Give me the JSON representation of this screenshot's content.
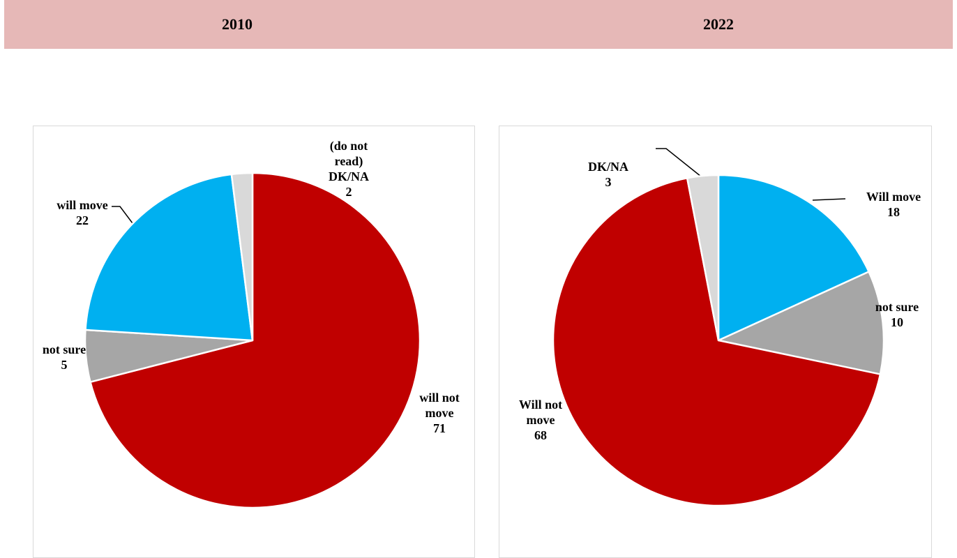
{
  "chart_data": [
    {
      "type": "pie",
      "title": "2010",
      "categories": [
        "will not move",
        "not sure",
        "will move",
        "(do not read) DK/NA"
      ],
      "values": [
        71,
        5,
        22,
        2
      ],
      "colors": [
        "#c00000",
        "#a6a6a6",
        "#00b0f0",
        "#d9d9d9"
      ]
    },
    {
      "type": "pie",
      "title": "2022",
      "categories": [
        "Will move",
        "not sure",
        "Will not move",
        "DK/NA"
      ],
      "values": [
        18,
        10,
        68,
        3
      ],
      "colors": [
        "#00b0f0",
        "#a6a6a6",
        "#c00000",
        "#d9d9d9"
      ]
    }
  ]
}
